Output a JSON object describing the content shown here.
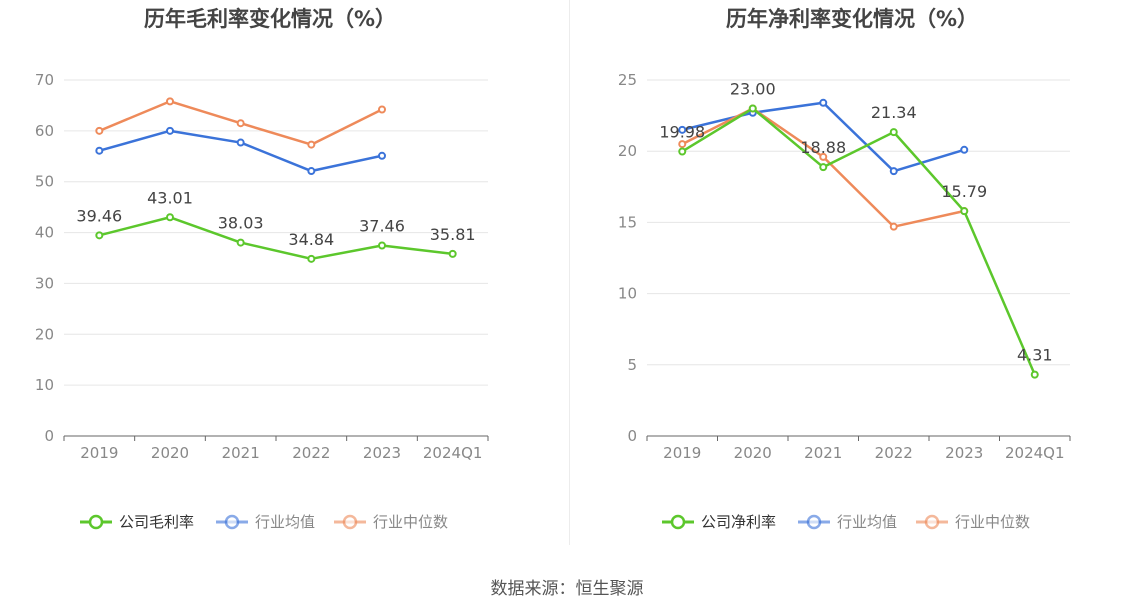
{
  "source_label": "数据来源：恒生聚源",
  "colors": {
    "company": "#5cc72c",
    "industry_avg": "#3b73d9",
    "industry_median": "#ee8a5a",
    "grid": "#e6e6e6",
    "axis": "#666666",
    "tick_text": "#888888"
  },
  "chart_data": [
    {
      "type": "line",
      "title": "历年毛利率变化情况（%）",
      "categories": [
        "2019",
        "2020",
        "2021",
        "2022",
        "2023",
        "2024Q1"
      ],
      "ylim": [
        0,
        70
      ],
      "yticks": [
        0,
        10,
        20,
        30,
        40,
        50,
        60,
        70
      ],
      "grid": true,
      "legend_position": "bottom",
      "series": [
        {
          "name": "公司毛利率",
          "color_key": "company",
          "values": [
            39.46,
            43.01,
            38.03,
            34.84,
            37.46,
            35.81
          ],
          "labels": [
            "39.46",
            "43.01",
            "38.03",
            "34.84",
            "37.46",
            "35.81"
          ]
        },
        {
          "name": "行业均值",
          "color_key": "industry_avg",
          "values": [
            56.1,
            60.0,
            57.7,
            52.1,
            55.1,
            null
          ]
        },
        {
          "name": "行业中位数",
          "color_key": "industry_median",
          "values": [
            60.0,
            65.8,
            61.5,
            57.3,
            64.2,
            null
          ]
        }
      ]
    },
    {
      "type": "line",
      "title": "历年净利率变化情况（%）",
      "categories": [
        "2019",
        "2020",
        "2021",
        "2022",
        "2023",
        "2024Q1"
      ],
      "ylim": [
        0,
        25
      ],
      "yticks": [
        0,
        5,
        10,
        15,
        20,
        25
      ],
      "grid": true,
      "legend_position": "bottom",
      "series": [
        {
          "name": "公司净利率",
          "color_key": "company",
          "values": [
            19.98,
            23.0,
            18.88,
            21.34,
            15.79,
            4.31
          ],
          "labels": [
            "19.98",
            "23.00",
            "18.88",
            "21.34",
            "15.79",
            "4.31"
          ]
        },
        {
          "name": "行业均值",
          "color_key": "industry_avg",
          "values": [
            21.5,
            22.7,
            23.4,
            18.6,
            20.1,
            null
          ]
        },
        {
          "name": "行业中位数",
          "color_key": "industry_median",
          "values": [
            20.5,
            23.0,
            19.6,
            14.7,
            15.8,
            null
          ]
        }
      ]
    }
  ]
}
